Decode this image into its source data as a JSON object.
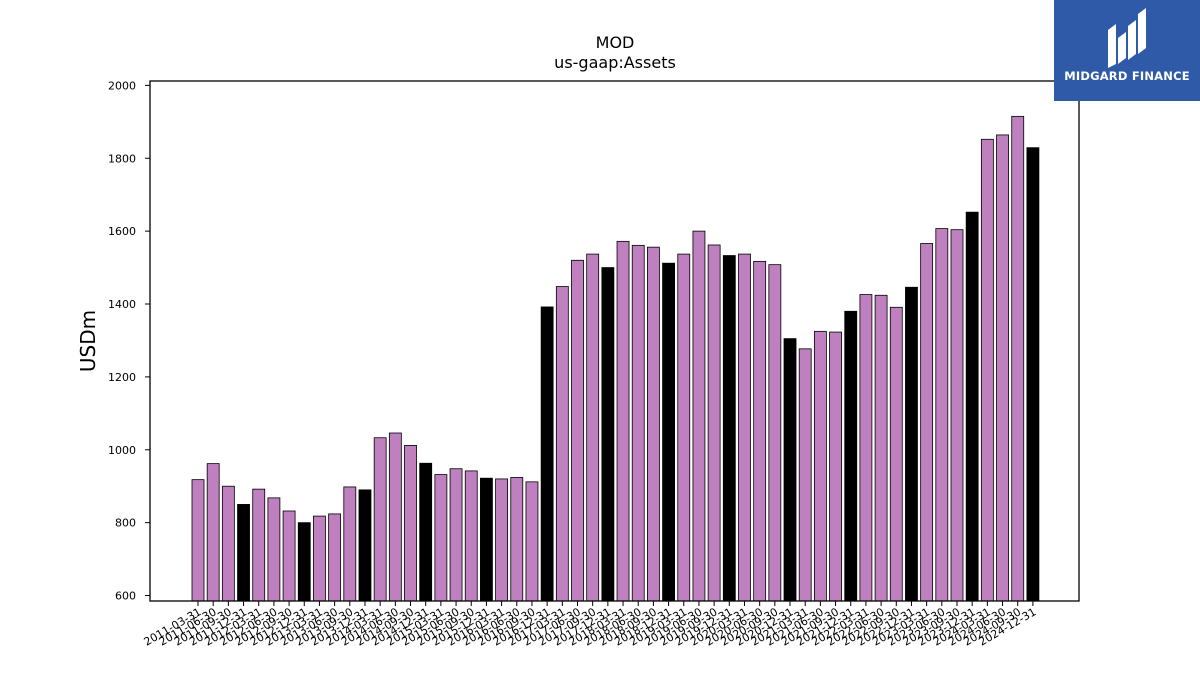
{
  "logo": {
    "text": "MIDGARD FINANCE",
    "background": "#2f5aa8"
  },
  "chart_data": {
    "type": "bar",
    "title": "MOD",
    "subtitle": "us-gaap:Assets",
    "xlabel": "",
    "ylabel": "USDm",
    "ylim": [
      585,
      2012
    ],
    "yticks": [
      600,
      800,
      1000,
      1200,
      1400,
      1600,
      1800,
      2000
    ],
    "colors": {
      "quarter": "#bf80bf",
      "year_end": "#000000"
    },
    "grid": false,
    "categories": [
      "2011-03-31",
      "2011-06-30",
      "2011-09-30",
      "2011-12-31",
      "2012-03-31",
      "2012-06-30",
      "2012-09-30",
      "2012-12-31",
      "2013-03-31",
      "2013-06-30",
      "2013-09-30",
      "2013-12-31",
      "2014-03-31",
      "2014-06-30",
      "2014-09-30",
      "2014-12-31",
      "2015-03-31",
      "2015-06-30",
      "2015-09-30",
      "2015-12-31",
      "2016-03-31",
      "2016-06-30",
      "2016-09-30",
      "2016-12-31",
      "2017-03-31",
      "2017-06-30",
      "2017-09-30",
      "2017-12-31",
      "2018-03-31",
      "2018-06-30",
      "2018-09-30",
      "2018-12-31",
      "2019-03-31",
      "2019-06-30",
      "2019-09-30",
      "2019-12-31",
      "2020-03-31",
      "2020-06-30",
      "2020-09-30",
      "2020-12-31",
      "2021-03-31",
      "2021-06-30",
      "2021-09-30",
      "2021-12-31",
      "2022-03-31",
      "2022-06-30",
      "2022-09-30",
      "2022-12-31",
      "2023-03-31",
      "2023-06-30",
      "2023-09-30",
      "2023-12-31",
      "2024-03-31",
      "2024-06-30",
      "2024-09-30",
      "2024-12-31"
    ],
    "values": [
      918,
      962,
      900,
      850,
      892,
      868,
      832,
      800,
      818,
      824,
      898,
      890,
      1033,
      1046,
      1012,
      963,
      932,
      948,
      942,
      922,
      920,
      924,
      912,
      1392,
      1448,
      1520,
      1537,
      1500,
      1572,
      1561,
      1556,
      1512,
      1537,
      1600,
      1562,
      1533,
      1537,
      1517,
      1508,
      1305,
      1277,
      1325,
      1323,
      1380,
      1426,
      1424,
      1391,
      1446,
      1566,
      1607,
      1604,
      1652,
      1852,
      1864,
      1915,
      1829
    ],
    "year_end": [
      false,
      false,
      false,
      true,
      false,
      false,
      false,
      true,
      false,
      false,
      false,
      true,
      false,
      false,
      false,
      true,
      false,
      false,
      false,
      true,
      false,
      false,
      false,
      true,
      false,
      false,
      false,
      true,
      false,
      false,
      false,
      true,
      false,
      false,
      false,
      true,
      false,
      false,
      false,
      true,
      false,
      false,
      false,
      true,
      false,
      false,
      false,
      true,
      false,
      false,
      false,
      true,
      false,
      false,
      false,
      true
    ]
  }
}
